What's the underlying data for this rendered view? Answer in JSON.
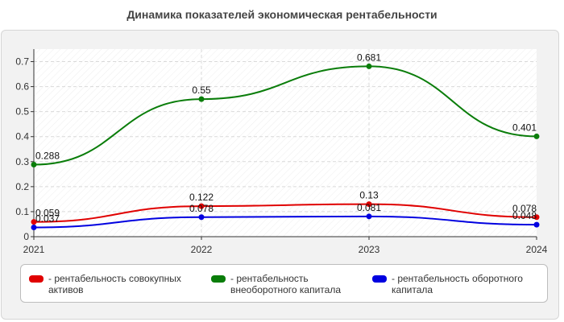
{
  "title": "Динамика показателей экономическая рентабельности",
  "chart_data": {
    "type": "line",
    "title": "Динамика показателей экономическая рентабельности",
    "categories": [
      "2021",
      "2022",
      "2023",
      "2024"
    ],
    "ylim": [
      0,
      0.75
    ],
    "yticks": [
      "0",
      "0.1",
      "0.2",
      "0.3",
      "0.4",
      "0.5",
      "0.6",
      "0.7"
    ],
    "grid": true,
    "legend_position": "bottom",
    "series": [
      {
        "name": "- рентабельность совокупных активов",
        "color": "#e00000",
        "values": [
          0.059,
          0.122,
          0.13,
          0.078
        ],
        "labels": [
          "0.059",
          "0.122",
          "0.13",
          "0.078"
        ]
      },
      {
        "name": "- рентабельность внеоборотного капитала",
        "color": "#0a7d0a",
        "values": [
          0.288,
          0.55,
          0.681,
          0.401
        ],
        "labels": [
          "0.288",
          "0.55",
          "0.681",
          "0.401"
        ]
      },
      {
        "name": "- рентабельность оборотного капитала",
        "color": "#0000e0",
        "values": [
          0.037,
          0.078,
          0.081,
          0.048
        ],
        "labels": [
          "0.037",
          "0.078",
          "0.081",
          "0.048"
        ]
      }
    ]
  }
}
